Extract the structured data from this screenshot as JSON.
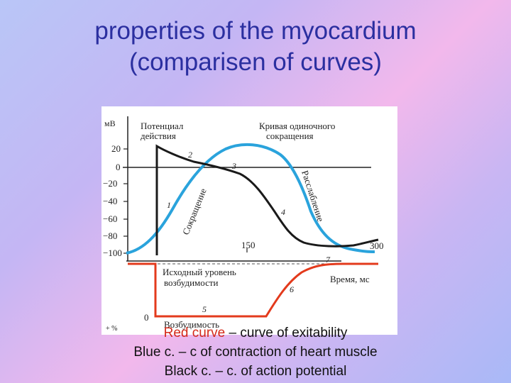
{
  "slide": {
    "title_line1": "properties of the myocardium",
    "title_line2": "(comparisen  of curves)"
  },
  "figure": {
    "y_axis_unit": "мВ",
    "y_ticks": [
      "20",
      "0",
      "−20",
      "−40",
      "−60",
      "−80",
      "−100"
    ],
    "label_action_potential_1": "Потенциал",
    "label_action_potential_2": "действия",
    "label_contraction_curve_1": "Кривая одиночного",
    "label_contraction_curve_2": "сокращения",
    "label_contraction": "Сокращение",
    "label_relaxation": "Расслабление",
    "label_excitability_level_1": "Исходный уровень",
    "label_excitability_level_2": "возбудимости",
    "label_time": "Время, мс",
    "label_excitability": "Возбудимость",
    "x_tick_150": "150",
    "x_tick_300": "300",
    "lower_axis_unit": "+ %",
    "lower_zero": "0",
    "markers": [
      "1",
      "2",
      "3",
      "4",
      "5",
      "6",
      "7"
    ],
    "colors": {
      "excitability": "#e33a1c",
      "contraction": "#2aa3dc",
      "action_potential": "#1a1a1a"
    }
  },
  "caption": {
    "line1_red": "Red curve",
    "line1_rest": " – curve of exitability",
    "line2": "Blue c. – c of contraction of heart muscle",
    "line3": "Black c. – c. of action potential"
  }
}
